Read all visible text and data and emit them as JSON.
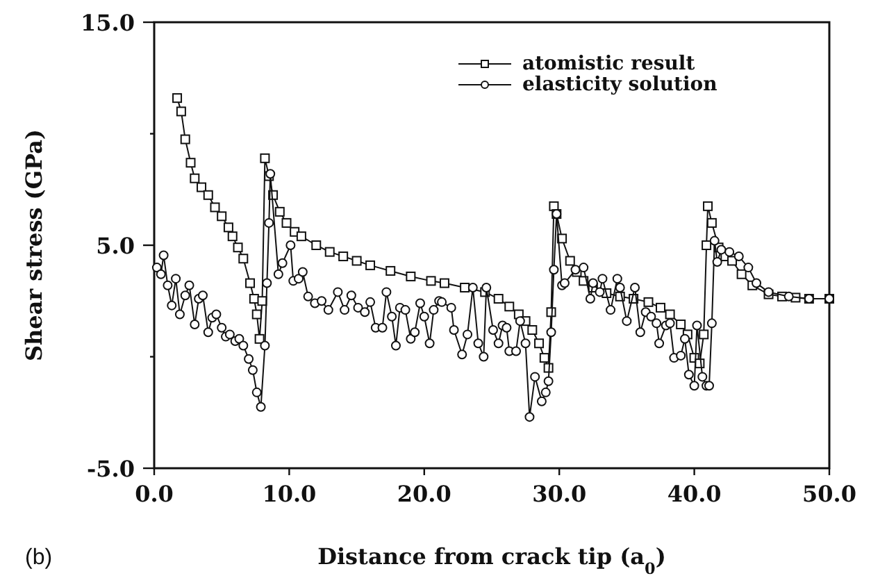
{
  "chart_data": {
    "type": "line",
    "xlabel": "Distance from crack tip (a$_{0}$)",
    "ylabel": "Shear stress (GPa)",
    "annotations": [
      "(b)"
    ],
    "xlim": [
      0,
      50
    ],
    "ylim": [
      -5,
      15
    ],
    "xticks": [
      {
        "value": 0,
        "label": "0.0"
      },
      {
        "value": 10,
        "label": "10.0"
      },
      {
        "value": 20,
        "label": "20.0"
      },
      {
        "value": 30,
        "label": "30.0"
      },
      {
        "value": 40,
        "label": "40.0"
      },
      {
        "value": 50,
        "label": "50.0"
      }
    ],
    "yticks": [
      {
        "value": -5,
        "label": "-5.0"
      },
      {
        "value": 0,
        "label": null
      },
      {
        "value": 5,
        "label": "5.0"
      },
      {
        "value": 10,
        "label": null
      },
      {
        "value": 15,
        "label": "15.0"
      }
    ],
    "grid": false,
    "legend": "top right",
    "line_style": "solid",
    "series": [
      {
        "name": "atomistic result",
        "color": "#111111",
        "marker": "square",
        "x": [
          1.7,
          2.0,
          2.3,
          2.7,
          3.0,
          3.5,
          4.0,
          4.5,
          5.0,
          5.5,
          5.8,
          6.2,
          6.6,
          7.1,
          7.4,
          7.6,
          7.8,
          8.0,
          8.2,
          8.5,
          8.8,
          9.3,
          9.8,
          10.4,
          10.9,
          12,
          13,
          14,
          15,
          16,
          17.5,
          19,
          20.5,
          21.5,
          23,
          24.5,
          25.5,
          26.3,
          27,
          27.5,
          28,
          28.5,
          28.9,
          29.2,
          29.4,
          29.6,
          29.8,
          30.2,
          30.8,
          31.3,
          31.8,
          32.5,
          33.5,
          34.5,
          35.5,
          36.6,
          37.5,
          38.2,
          39,
          39.5,
          40,
          40.4,
          40.7,
          40.9,
          41.0,
          41.3,
          41.8,
          42.3,
          42.8,
          43.5,
          44.3,
          45.5,
          46.5,
          47.5,
          48.5,
          50
        ],
        "values": [
          11.6,
          11.0,
          9.75,
          8.7,
          8.0,
          7.6,
          7.25,
          6.7,
          6.3,
          5.8,
          5.4,
          4.9,
          4.4,
          3.3,
          2.6,
          1.9,
          0.8,
          2.5,
          8.9,
          8.1,
          7.25,
          6.5,
          6.0,
          5.6,
          5.4,
          5.0,
          4.7,
          4.5,
          4.3,
          4.1,
          3.85,
          3.6,
          3.4,
          3.3,
          3.1,
          2.9,
          2.6,
          2.25,
          1.9,
          1.6,
          1.2,
          0.6,
          -0.05,
          -0.5,
          2.0,
          6.75,
          6.4,
          5.3,
          4.3,
          3.8,
          3.4,
          3.1,
          2.85,
          2.7,
          2.6,
          2.45,
          2.2,
          1.9,
          1.45,
          1.0,
          -0.05,
          -0.3,
          1.0,
          5.0,
          6.75,
          6.0,
          4.9,
          4.5,
          4.3,
          3.7,
          3.2,
          2.8,
          2.7,
          2.65,
          2.6,
          2.6
        ]
      },
      {
        "name": "elasticity solution",
        "color": "#111111",
        "marker": "circle",
        "x": [
          0.2,
          0.5,
          0.7,
          1.0,
          1.3,
          1.6,
          1.9,
          2.3,
          2.6,
          3.0,
          3.3,
          3.6,
          4.0,
          4.3,
          4.6,
          5.0,
          5.3,
          5.6,
          6.0,
          6.3,
          6.6,
          7.0,
          7.3,
          7.6,
          7.9,
          8.2,
          8.35,
          8.5,
          8.6,
          9.2,
          9.5,
          10.1,
          10.3,
          10.7,
          11.0,
          11.4,
          11.9,
          12.4,
          12.9,
          13.6,
          14.1,
          14.6,
          15.1,
          15.6,
          16.0,
          16.4,
          16.9,
          17.2,
          17.6,
          17.9,
          18.2,
          18.6,
          19.0,
          19.3,
          19.7,
          20.0,
          20.4,
          20.7,
          21.1,
          21.3,
          22.0,
          22.2,
          22.8,
          23.2,
          23.6,
          24.0,
          24.4,
          24.6,
          25.1,
          25.5,
          25.8,
          26.1,
          26.3,
          26.8,
          27.1,
          27.5,
          27.8,
          28.2,
          28.7,
          29.0,
          29.2,
          29.4,
          29.6,
          29.8,
          30.2,
          30.4,
          31.2,
          31.8,
          32.3,
          32.5,
          33.0,
          33.2,
          33.8,
          34.3,
          34.5,
          35.0,
          35.6,
          36.0,
          36.4,
          36.8,
          37.2,
          37.4,
          37.9,
          38.2,
          38.5,
          39.0,
          39.3,
          39.6,
          40.0,
          40.2,
          40.6,
          40.9,
          41.1,
          41.3,
          41.5,
          41.7,
          42.0,
          42.6,
          43.3,
          44.0,
          44.6,
          45.5,
          47.0,
          48.5,
          50.0
        ],
        "values": [
          4.0,
          3.7,
          4.55,
          3.2,
          2.3,
          3.5,
          1.9,
          2.75,
          3.2,
          1.45,
          2.6,
          2.75,
          1.1,
          1.75,
          1.9,
          1.3,
          0.9,
          1.0,
          0.7,
          0.8,
          0.5,
          -0.1,
          -0.6,
          -1.6,
          -2.25,
          0.5,
          3.3,
          6.0,
          8.2,
          3.7,
          4.2,
          5.0,
          3.4,
          3.5,
          3.8,
          2.7,
          2.4,
          2.5,
          2.1,
          2.9,
          2.1,
          2.75,
          2.2,
          2.0,
          2.45,
          1.3,
          1.3,
          2.9,
          1.8,
          0.5,
          2.2,
          2.1,
          0.8,
          1.1,
          2.4,
          1.8,
          0.6,
          2.1,
          2.5,
          2.45,
          2.2,
          1.2,
          0.1,
          1.0,
          3.1,
          0.6,
          0.0,
          3.1,
          1.2,
          0.6,
          1.4,
          1.3,
          0.25,
          0.25,
          1.6,
          0.6,
          -2.7,
          -0.9,
          -2.0,
          -1.6,
          -1.1,
          1.1,
          3.9,
          6.4,
          3.2,
          3.3,
          3.9,
          4.0,
          2.6,
          3.3,
          2.9,
          3.5,
          2.1,
          3.5,
          3.1,
          1.6,
          3.1,
          1.1,
          2.0,
          1.8,
          1.5,
          0.6,
          1.4,
          1.5,
          -0.05,
          0.05,
          0.8,
          -0.8,
          -1.3,
          1.4,
          -0.9,
          -1.3,
          -1.3,
          1.5,
          5.2,
          4.25,
          4.8,
          4.7,
          4.5,
          4.0,
          3.3,
          2.9,
          2.7,
          2.6,
          2.6
        ]
      }
    ]
  }
}
